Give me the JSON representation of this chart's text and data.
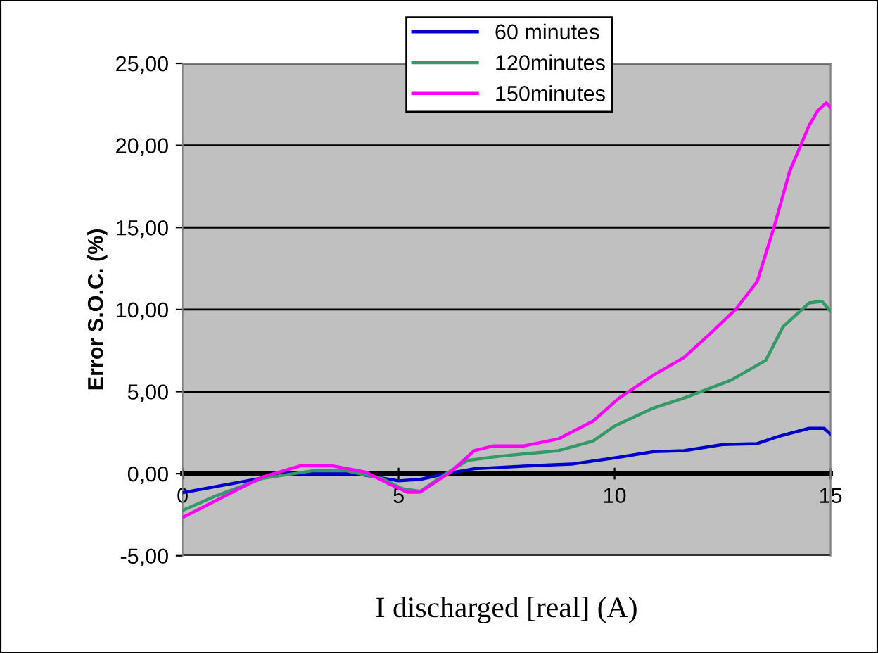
{
  "chart_data": {
    "type": "line",
    "xlabel": "I discharged [real] (A)",
    "ylabel": "Error S.O.C. (%)",
    "xlim": [
      0,
      15
    ],
    "xticks": [
      0,
      5,
      10,
      15
    ],
    "ylim": [
      -5,
      25
    ],
    "yticks": [
      {
        "value": -5,
        "label": "-5,00"
      },
      {
        "value": 0,
        "label": "0,00"
      },
      {
        "value": 5,
        "label": "5,00"
      },
      {
        "value": 10,
        "label": "10,00"
      },
      {
        "value": 15,
        "label": "15,00"
      },
      {
        "value": 20,
        "label": "20,00"
      },
      {
        "value": 25,
        "label": "25,00"
      }
    ],
    "grid": "y",
    "legend": "top",
    "line_style": "solid",
    "series": [
      {
        "name": "60 minutes",
        "color": "#0000cc",
        "x": [
          0,
          2.4,
          4,
          5,
          5.5,
          6.1,
          6.75,
          8.4,
          9.0,
          10.0,
          10.9,
          11.6,
          12.5,
          13.3,
          13.8,
          14.5,
          14.85,
          15
        ],
        "values": [
          -1.16,
          0,
          0,
          -0.44,
          -0.35,
          0,
          0.3,
          0.52,
          0.58,
          0.96,
          1.34,
          1.4,
          1.77,
          1.83,
          2.27,
          2.76,
          2.76,
          2.4
        ]
      },
      {
        "name": "120minutes",
        "color": "#339966",
        "x": [
          0,
          0.76,
          1.85,
          3.0,
          3.8,
          4.6,
          5.1,
          5.5,
          6.1,
          6.6,
          7.3,
          8.7,
          9.5,
          10.0,
          10.9,
          11.6,
          12.7,
          13.5,
          13.9,
          14.5,
          14.8,
          15
        ],
        "values": [
          -2.24,
          -1.37,
          -0.29,
          0.17,
          0.17,
          -0.29,
          -0.93,
          -1.08,
          0,
          0.81,
          1.05,
          1.4,
          1.98,
          2.9,
          4.0,
          4.6,
          5.7,
          6.9,
          8.95,
          10.4,
          10.5,
          9.9
        ]
      },
      {
        "name": "150minutes",
        "color": "#ff00ff",
        "x": [
          0,
          0.76,
          1.85,
          2.72,
          3.48,
          4.24,
          4.79,
          5.2,
          5.5,
          6.2,
          6.75,
          7.2,
          7.9,
          8.7,
          9.5,
          10.1,
          10.9,
          11.6,
          12.2,
          12.8,
          13.3,
          13.7,
          14.05,
          14.5,
          14.7,
          14.9,
          15
        ],
        "values": [
          -2.67,
          -1.66,
          -0.2,
          0.47,
          0.47,
          0.09,
          -0.64,
          -1.13,
          -1.13,
          0.09,
          1.4,
          1.69,
          1.69,
          2.12,
          3.2,
          4.6,
          6.0,
          7.06,
          8.5,
          10.0,
          11.7,
          15.1,
          18.4,
          21.2,
          22.1,
          22.6,
          22.3
        ]
      }
    ]
  }
}
